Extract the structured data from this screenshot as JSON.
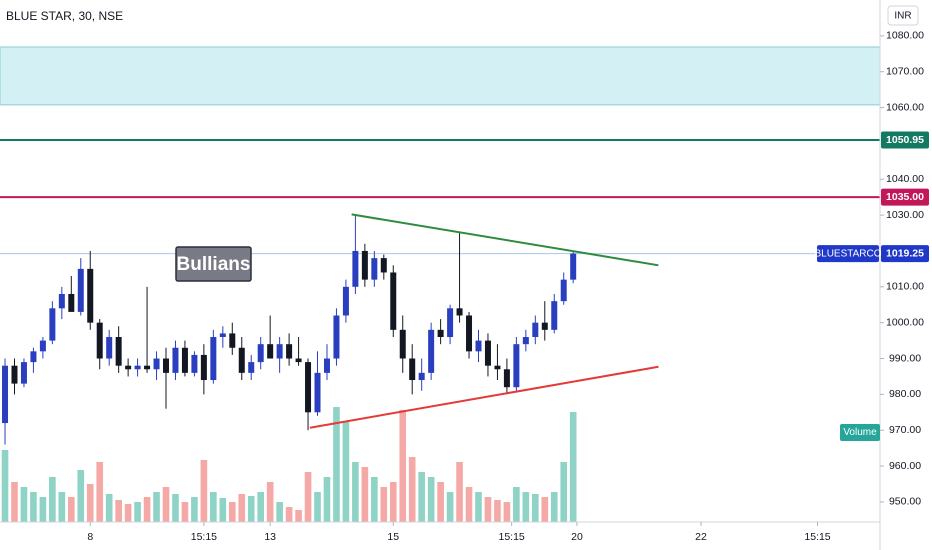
{
  "chart_data": {
    "type": "candlestick",
    "title": "BLUE STAR, 30, NSE",
    "currency": "INR",
    "symbol": "BLUESTARCO",
    "candles": {
      "open": [
        972,
        988,
        983,
        989,
        992,
        995,
        1004,
        1008,
        1003,
        1015,
        1000,
        990,
        996,
        988,
        987,
        988,
        987,
        990,
        986,
        993,
        986,
        991,
        984,
        996,
        997,
        993,
        986,
        989,
        994,
        990,
        994,
        990,
        989,
        975,
        986,
        990,
        1002,
        1010,
        1020,
        1012,
        1018,
        1014,
        998,
        990,
        984,
        986,
        998,
        996,
        1004,
        1002,
        992,
        995,
        988,
        987,
        982,
        994,
        996,
        1000,
        998,
        1006,
        1012
      ],
      "high": [
        990,
        990,
        990,
        993,
        996,
        1006,
        1010,
        1013,
        1018,
        1020,
        1001,
        998,
        999,
        990,
        990,
        1010,
        992,
        993,
        995,
        995,
        992,
        994,
        998,
        999,
        1000,
        996,
        991,
        996,
        1002,
        996,
        997,
        996,
        990,
        992,
        994,
        1004,
        1012,
        1030,
        1022,
        1020,
        1019,
        1016,
        1002,
        994,
        990,
        1000,
        1001,
        1005,
        1025,
        1003,
        998,
        997,
        994,
        990,
        996,
        998,
        1002,
        1006,
        1008,
        1014,
        1020
      ],
      "low": [
        966,
        980,
        982,
        986,
        990,
        994,
        1001,
        1005,
        1002,
        998,
        987,
        988,
        986,
        985,
        985,
        986,
        984,
        976,
        984,
        985,
        985,
        980,
        983,
        993,
        991,
        984,
        984,
        987,
        992,
        986,
        988,
        988,
        970,
        974,
        984,
        988,
        1000,
        1008,
        1010,
        1010,
        1012,
        996,
        986,
        980,
        981,
        984,
        994,
        994,
        1000,
        990,
        989,
        985,
        984,
        980,
        981,
        992,
        994,
        995,
        997,
        1005,
        1011
      ],
      "close": [
        988,
        983,
        989,
        992,
        995,
        1004,
        1008,
        1003,
        1015,
        1000,
        990,
        996,
        988,
        987,
        988,
        987,
        990,
        986,
        993,
        986,
        991,
        984,
        996,
        997,
        993,
        986,
        989,
        994,
        990,
        994,
        990,
        989,
        975,
        986,
        990,
        1002,
        1010,
        1020,
        1012,
        1018,
        1014,
        998,
        990,
        984,
        986,
        998,
        996,
        1004,
        1002,
        992,
        995,
        988,
        987,
        982,
        994,
        996,
        1000,
        998,
        1006,
        1012,
        1019.25
      ]
    },
    "volume": [
      72,
      40,
      35,
      30,
      25,
      45,
      30,
      25,
      52,
      38,
      60,
      28,
      22,
      18,
      20,
      25,
      30,
      35,
      28,
      20,
      25,
      62,
      30,
      24,
      20,
      28,
      26,
      30,
      40,
      20,
      15,
      12,
      50,
      30,
      45,
      115,
      100,
      60,
      55,
      45,
      35,
      40,
      112,
      65,
      50,
      45,
      40,
      30,
      60,
      35,
      30,
      25,
      22,
      20,
      35,
      30,
      28,
      25,
      30,
      60,
      110
    ],
    "volume_label": "Volume",
    "up_color": "#2a3fbf",
    "down_color": "#131722",
    "volume_up_color": "#8fd3c7",
    "volume_down_color": "#f5a9a6",
    "ylim": [
      944.4,
      1090.0
    ],
    "yticks": [
      {
        "value": 1080,
        "label": "1080.00"
      },
      {
        "value": 1070,
        "label": "1070.00"
      },
      {
        "value": 1060,
        "label": "1060.00"
      },
      {
        "value": 1040,
        "label": "1040.00"
      },
      {
        "value": 1030,
        "label": "1030.00"
      },
      {
        "value": 1010,
        "label": "1010.00"
      },
      {
        "value": 1000,
        "label": "1000.00"
      },
      {
        "value": 990,
        "label": "990.00"
      },
      {
        "value": 980,
        "label": "980.00"
      },
      {
        "value": 970,
        "label": "970.00"
      },
      {
        "value": 960,
        "label": "960.00"
      },
      {
        "value": 950,
        "label": "950.00"
      }
    ],
    "xlim": [
      -0.53,
      92.4
    ],
    "xticks": [
      {
        "value": 9,
        "label": "8"
      },
      {
        "value": 21,
        "label": "15:15"
      },
      {
        "value": 28,
        "label": "13"
      },
      {
        "value": 41,
        "label": "15"
      },
      {
        "value": 53.5,
        "label": "15:15"
      },
      {
        "value": 60.4,
        "label": "20"
      },
      {
        "value": 73.5,
        "label": "22"
      },
      {
        "value": 85.8,
        "label": "15:15"
      }
    ],
    "zone": {
      "from": 1060.75,
      "to": 1076.9,
      "color": "#d3f0f4",
      "border": "#8ccbd6"
    },
    "levels": [
      {
        "value": 1050.95,
        "color": "#137a61"
      },
      {
        "value": {
          "value": 1035,
          "label": "1035.00"
        },
        "color": "#c2185b"
      }
    ],
    "last_price": 1019.25,
    "last_color": "#2038c8",
    "trendlines": [
      {
        "x": [
          36.6,
          69.0
        ],
        "y": [
          1030.2,
          1016.0
        ],
        "color": "#2e8b3e"
      },
      {
        "x": [
          32.2,
          69.0
        ],
        "y": [
          970.7,
          987.7
        ],
        "color": "#e53935"
      }
    ],
    "annotation": "Bullians"
  }
}
